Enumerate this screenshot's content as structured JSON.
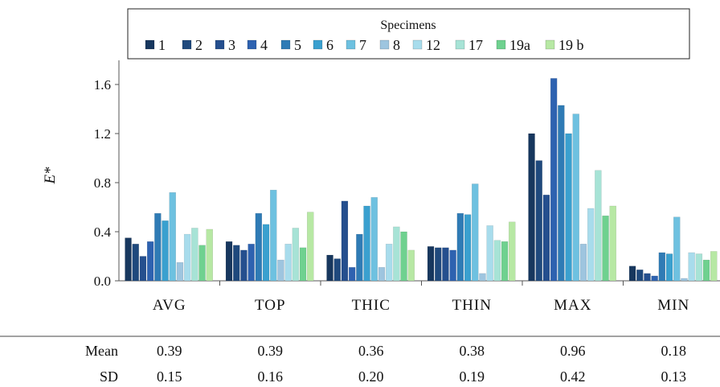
{
  "chart_data": {
    "type": "bar",
    "legend_title": "Specimens",
    "ylabel": "E*",
    "ylim": [
      0,
      1.8
    ],
    "yticks": [
      "0.0",
      "0.4",
      "0.8",
      "1.2",
      "1.6"
    ],
    "categories": [
      "AVG",
      "TOP",
      "THIC",
      "THIN",
      "MAX",
      "MIN"
    ],
    "series": [
      {
        "name": "1",
        "color": "#17375e",
        "values": [
          0.35,
          0.32,
          0.21,
          0.28,
          1.2,
          0.12
        ]
      },
      {
        "name": "2",
        "color": "#1f497d",
        "values": [
          0.3,
          0.29,
          0.18,
          0.27,
          0.98,
          0.09
        ]
      },
      {
        "name": "3",
        "color": "#254f8e",
        "values": [
          0.2,
          0.25,
          0.65,
          0.27,
          0.7,
          0.06
        ]
      },
      {
        "name": "4",
        "color": "#2e62b0",
        "values": [
          0.32,
          0.3,
          0.11,
          0.25,
          1.65,
          0.04
        ]
      },
      {
        "name": "5",
        "color": "#2f7bb5",
        "values": [
          0.55,
          0.55,
          0.38,
          0.55,
          1.43,
          0.23
        ]
      },
      {
        "name": "6",
        "color": "#3aa0cf",
        "values": [
          0.49,
          0.46,
          0.61,
          0.54,
          1.2,
          0.22
        ]
      },
      {
        "name": "7",
        "color": "#6ec1e0",
        "values": [
          0.72,
          0.74,
          0.68,
          0.79,
          1.36,
          0.52
        ]
      },
      {
        "name": "8",
        "color": "#9ec5df",
        "values": [
          0.15,
          0.17,
          0.11,
          0.06,
          0.3,
          0.02
        ]
      },
      {
        "name": "12",
        "color": "#a8dcec",
        "values": [
          0.38,
          0.3,
          0.3,
          0.45,
          0.59,
          0.23
        ]
      },
      {
        "name": "17",
        "color": "#a7e3d6",
        "values": [
          0.43,
          0.43,
          0.44,
          0.33,
          0.9,
          0.22
        ]
      },
      {
        "name": "19a",
        "color": "#6fd18f",
        "values": [
          0.29,
          0.27,
          0.4,
          0.32,
          0.53,
          0.17
        ]
      },
      {
        "name": "19 b",
        "color": "#b7e8a4",
        "values": [
          0.42,
          0.56,
          0.25,
          0.48,
          0.61,
          0.24
        ]
      }
    ]
  },
  "stats_table": {
    "mean_label": "Mean",
    "sd_label": "SD",
    "mean": [
      "0.39",
      "0.39",
      "0.36",
      "0.38",
      "0.96",
      "0.18"
    ],
    "sd": [
      "0.15",
      "0.16",
      "0.20",
      "0.19",
      "0.42",
      "0.13"
    ]
  }
}
